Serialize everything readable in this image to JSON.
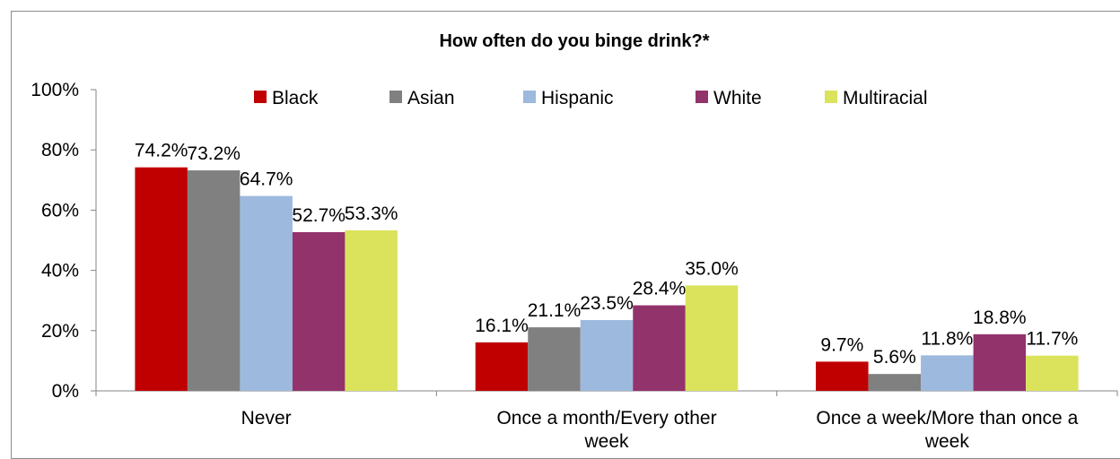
{
  "chart_data": {
    "type": "bar",
    "title": "How often do you binge drink?*",
    "xlabel": "",
    "ylabel": "",
    "ylim": [
      0,
      100
    ],
    "yticks": [
      "0%",
      "20%",
      "40%",
      "60%",
      "80%",
      "100%"
    ],
    "ytick_values": [
      0,
      20,
      40,
      60,
      80,
      100
    ],
    "categories": [
      [
        "Never"
      ],
      [
        "Once a month/Every other",
        "week"
      ],
      [
        "Once a week/More than once a",
        "week"
      ]
    ],
    "legend_position": "top",
    "grid": false,
    "series": [
      {
        "name": "Black",
        "color": "#c00000",
        "values": [
          74.2,
          16.1,
          9.7
        ],
        "labels": [
          "74.2%",
          "16.1%",
          "9.7%"
        ]
      },
      {
        "name": "Asian",
        "color": "#808080",
        "values": [
          73.2,
          21.1,
          5.6
        ],
        "labels": [
          "73.2%",
          "21.1%",
          "5.6%"
        ]
      },
      {
        "name": "Hispanic",
        "color": "#9db9dd",
        "values": [
          64.7,
          23.5,
          11.8
        ],
        "labels": [
          "64.7%",
          "23.5%",
          "11.8%"
        ]
      },
      {
        "name": "White",
        "color": "#93336c",
        "values": [
          52.7,
          28.4,
          18.8
        ],
        "labels": [
          "52.7%",
          "28.4%",
          "18.8%"
        ]
      },
      {
        "name": "Multiracial",
        "color": "#dbe35c",
        "values": [
          53.3,
          35.0,
          11.7
        ],
        "labels": [
          "53.3%",
          "35.0%",
          "11.7%"
        ]
      }
    ]
  }
}
